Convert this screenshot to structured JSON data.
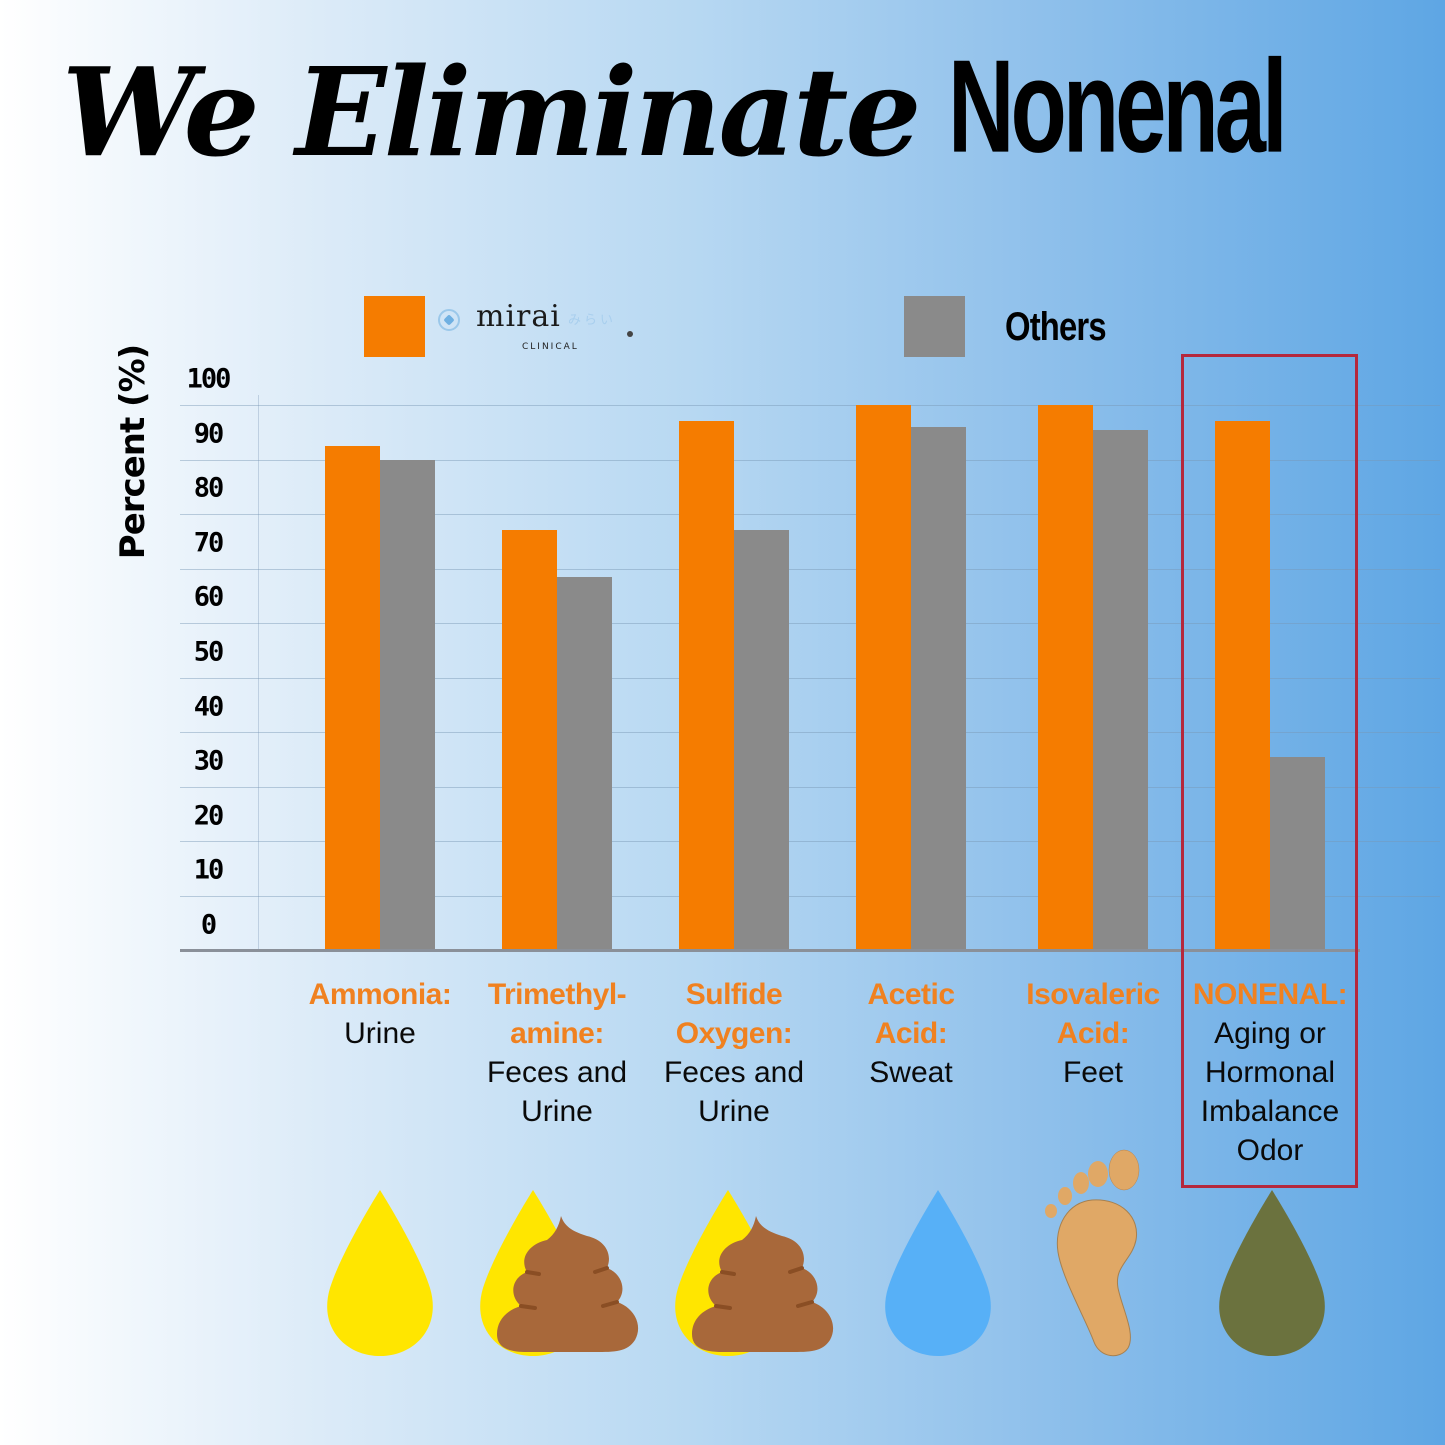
{
  "title": {
    "italic_part": "We Eliminate",
    "bold_part": "Nonenal"
  },
  "legend": {
    "items": [
      {
        "label": "mirai CLINICAL",
        "brand_word": "mirai",
        "brand_jp": "みらい",
        "brand_sub": "CLINICAL",
        "color": "#f57c00"
      },
      {
        "label": "Others",
        "color": "#8a8a8a"
      }
    ]
  },
  "axis": {
    "ylabel": "Percent (%)",
    "yticks": [
      "100",
      "90",
      "80",
      "70",
      "60",
      "50",
      "40",
      "30",
      "20",
      "10",
      "0"
    ]
  },
  "categories": [
    {
      "chemical": "Ammonia:",
      "source": "Urine",
      "icon": "yellow-drop-icon"
    },
    {
      "chemical": "Trimethyl-\namine:",
      "chemical_lines": [
        "Trimethyl-",
        "amine:"
      ],
      "source_lines": [
        "Feces and",
        "Urine"
      ],
      "icon": "drop-and-feces-icon"
    },
    {
      "chemical_lines": [
        "Sulfide",
        "Oxygen:"
      ],
      "source_lines": [
        "Feces and",
        "Urine"
      ],
      "icon": "drop-and-feces-icon"
    },
    {
      "chemical_lines": [
        "Acetic",
        "Acid:"
      ],
      "source_lines": [
        "Sweat"
      ],
      "icon": "blue-drop-icon"
    },
    {
      "chemical_lines": [
        "Isovaleric",
        "Acid:"
      ],
      "source_lines": [
        "Feet"
      ],
      "icon": "foot-icon"
    },
    {
      "chemical_lines": [
        "NONENAL:"
      ],
      "source_lines": [
        "Aging or",
        "Hormonal",
        "Imbalance",
        "Odor"
      ],
      "icon": "olive-drop-icon",
      "highlighted": true
    }
  ],
  "colors": {
    "mirai": "#f57c00",
    "others": "#8a8a8a",
    "highlight_border": "#b5283d",
    "category_label": "#f08120",
    "urine_drop": "#ffe600",
    "sweat_drop": "#57b0f7",
    "nonenal_drop": "#6b723e",
    "feces": "#a8683a",
    "foot": "#e0a866"
  },
  "chart_data": {
    "type": "bar",
    "title": "We Eliminate Nonenal",
    "xlabel": "",
    "ylabel": "Percent (%)",
    "ylim": [
      0,
      100
    ],
    "yticks": [
      0,
      10,
      20,
      30,
      40,
      50,
      60,
      70,
      80,
      90,
      100
    ],
    "grid": true,
    "legend_position": "top",
    "categories": [
      "Ammonia: Urine",
      "Trimethylamine: Feces and Urine",
      "Sulfide Oxygen: Feces and Urine",
      "Acetic Acid: Sweat",
      "Isovaleric Acid: Feet",
      "NONENAL: Aging or Hormonal Imbalance Odor"
    ],
    "series": [
      {
        "name": "mirai CLINICAL",
        "color": "#f57c00",
        "values": [
          92.5,
          77,
          97,
          100,
          100,
          97
        ]
      },
      {
        "name": "Others",
        "color": "#8a8a8a",
        "values": [
          90,
          68.5,
          77,
          96,
          95.5,
          35.5
        ]
      }
    ],
    "annotations": [
      "NONENAL category highlighted with red box"
    ]
  }
}
